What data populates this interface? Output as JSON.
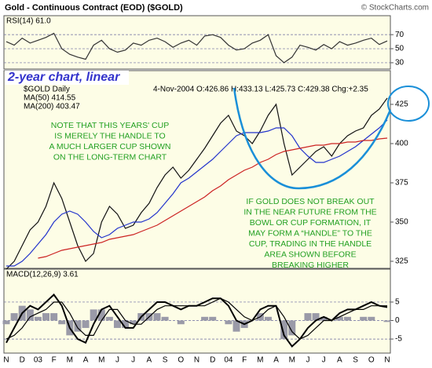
{
  "header": {
    "title": "Gold - Continuous Contract (EOD) ($GOLD)",
    "credit": "© StockCharts.com"
  },
  "chart_data": [
    {
      "type": "line",
      "title": "RSI(14) 61.0",
      "ylim": [
        21,
        97
      ],
      "yticks": [
        30,
        50,
        70
      ],
      "grid": true,
      "series": [
        {
          "color": "#333333",
          "values": [
            60,
            55,
            65,
            58,
            62,
            66,
            72,
            50,
            42,
            38,
            35,
            55,
            62,
            50,
            45,
            48,
            58,
            55,
            62,
            65,
            60,
            52,
            58,
            62,
            55,
            68,
            70,
            66,
            55,
            48,
            50,
            58,
            62,
            70,
            40,
            30,
            38,
            55,
            52,
            48,
            56,
            50,
            60,
            55,
            58,
            62,
            65,
            56,
            61
          ]
        }
      ]
    },
    {
      "type": "line",
      "subtitle": "2-year chart, linear",
      "info": "4-Nov-2004 O:426.86 H:433.13 L:425.73 C:429.38 Chg:+2.35",
      "ylim": [
        320.5,
        446.5
      ],
      "yticks": [
        325,
        350,
        375,
        400,
        425
      ],
      "grid": false,
      "series": [
        {
          "name": "$GOLD Daily",
          "color": "#111111",
          "values": [
            320,
            325,
            335,
            345,
            350,
            360,
            375,
            365,
            350,
            335,
            325,
            330,
            350,
            360,
            355,
            346,
            348,
            356,
            362,
            372,
            380,
            385,
            378,
            383,
            390,
            397,
            405,
            413,
            418,
            408,
            405,
            400,
            408,
            418,
            425,
            400,
            380,
            385,
            390,
            395,
            398,
            392,
            400,
            405,
            408,
            410,
            418,
            422,
            429
          ]
        },
        {
          "name": "MA(50) 414.55",
          "color": "#2233cc",
          "values": [
            322,
            322,
            325,
            330,
            336,
            342,
            350,
            355,
            357,
            355,
            350,
            344,
            340,
            342,
            346,
            348,
            350,
            350,
            352,
            356,
            362,
            368,
            375,
            378,
            382,
            386,
            390,
            395,
            400,
            405,
            407,
            407,
            407,
            408,
            410,
            410,
            405,
            397,
            392,
            388,
            388,
            390,
            392,
            395,
            398,
            402,
            406,
            410,
            415
          ]
        },
        {
          "name": "MA(200) 403.47",
          "color": "#cc2222",
          "values": [
            null,
            null,
            null,
            null,
            327,
            328,
            330,
            332,
            333,
            334,
            335,
            336,
            337,
            339,
            340,
            341,
            342,
            344,
            346,
            348,
            351,
            354,
            357,
            360,
            363,
            366,
            370,
            373,
            377,
            380,
            383,
            385,
            388,
            390,
            393,
            395,
            396,
            397,
            398,
            399,
            399,
            400,
            400,
            401,
            401,
            402,
            402,
            403,
            403.5
          ]
        }
      ],
      "annotations": [
        {
          "lines": [
            "NOTE THAT THIS YEARS' CUP",
            "IS MERELY THE HANDLE TO",
            "A MUCH LARGER CUP SHOWN",
            "ON THE LONG-TERM CHART"
          ]
        },
        {
          "lines": [
            "IF GOLD DOES NOT BREAK OUT",
            "IN THE NEAR FUTURE FROM THE",
            "BOWL OR CUP FORMATION, IT",
            "MAY FORM A “HANDLE” TO THE",
            "CUP, TRADING IN THE HANDLE",
            "AREA SHOWN BEFORE",
            "BREAKING HIGHER"
          ]
        }
      ]
    },
    {
      "type": "line",
      "title": "MACD(12,26,9) 3.61",
      "ylim": [
        -8.8,
        13.9
      ],
      "yticks": [
        -5,
        0,
        5
      ],
      "grid": true,
      "categories": [
        "N",
        null,
        "D",
        null,
        "03",
        null,
        "F",
        null,
        "M",
        null,
        "A",
        null,
        "M",
        null,
        "J",
        null,
        "J",
        null,
        "A",
        null,
        "S",
        null,
        "O",
        null,
        "N",
        null,
        "D",
        null,
        "04",
        null,
        "F",
        null,
        "M",
        null,
        "A",
        null,
        "M",
        null,
        "J",
        null,
        "J",
        null,
        "A",
        null,
        "S",
        null,
        "O",
        null,
        "N"
      ],
      "series": [
        {
          "type": "bar",
          "color": "#9a9aa8",
          "values": [
            -1,
            2,
            4,
            3,
            1,
            2,
            2,
            -1,
            -4,
            -3,
            -2,
            3,
            3,
            1,
            -2,
            -2,
            -1,
            2,
            2,
            2,
            1,
            0,
            -1,
            0,
            0,
            1,
            1,
            0,
            -1,
            -3,
            -2,
            0,
            2,
            1,
            0,
            -5,
            -4,
            0,
            2,
            2,
            1,
            0,
            1,
            1,
            0,
            1,
            1,
            0,
            -0.39
          ]
        },
        {
          "color": "#000000",
          "values": [
            -6,
            -2,
            2,
            4,
            3,
            5,
            7,
            4,
            -2,
            -5,
            -6,
            -1,
            3,
            4,
            1,
            -2,
            -2,
            1,
            3,
            5,
            5,
            4,
            3,
            4,
            4,
            5,
            6,
            6,
            4,
            0,
            -1,
            0,
            3,
            4,
            4,
            -4,
            -7,
            -5,
            -2,
            0,
            1,
            0,
            2,
            3,
            3,
            4,
            5,
            4,
            3.61
          ]
        },
        {
          "color": "#000000",
          "values": [
            -5,
            -4,
            -2,
            1,
            2,
            3,
            5,
            5,
            2,
            -2,
            -4,
            -4,
            0,
            3,
            3,
            0,
            -1,
            -1,
            1,
            3,
            4,
            4,
            4,
            4,
            4,
            4,
            5,
            6,
            5,
            3,
            1,
            0,
            1,
            3,
            4,
            1,
            -3,
            -5,
            -4,
            -2,
            0,
            0,
            1,
            2,
            3,
            3,
            4,
            4,
            4
          ]
        }
      ]
    }
  ]
}
